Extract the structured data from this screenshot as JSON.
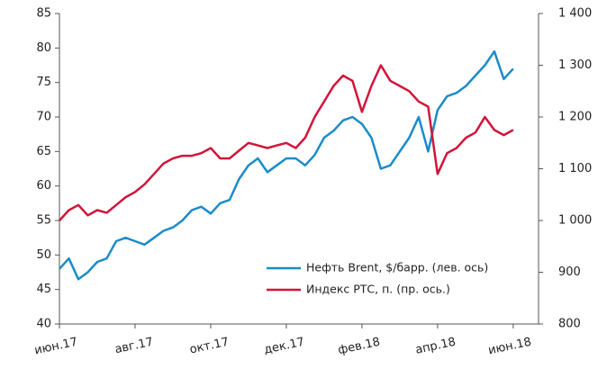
{
  "chart_data": {
    "type": "line",
    "xlim": [
      0,
      12.67
    ],
    "xticks": [
      {
        "value": 0,
        "label": "июн.17"
      },
      {
        "value": 2,
        "label": "авг.17"
      },
      {
        "value": 4,
        "label": "окт.17"
      },
      {
        "value": 6,
        "label": "дек.17"
      },
      {
        "value": 8,
        "label": "фев.18"
      },
      {
        "value": 10,
        "label": "апр.18"
      },
      {
        "value": 12,
        "label": "июн.18"
      }
    ],
    "ylim": [
      40,
      85
    ],
    "yticks": [
      40,
      45,
      50,
      55,
      60,
      65,
      70,
      75,
      80,
      85
    ],
    "y2lim": [
      800,
      1400
    ],
    "y2ticks": [
      {
        "value": 800,
        "label": "800"
      },
      {
        "value": 900,
        "label": "900"
      },
      {
        "value": 1000,
        "label": "1 000"
      },
      {
        "value": 1100,
        "label": "1 100"
      },
      {
        "value": 1200,
        "label": "1 200"
      },
      {
        "value": 1300,
        "label": "1 300"
      },
      {
        "value": 1400,
        "label": "1 400"
      }
    ],
    "x": [
      0,
      0.25,
      0.5,
      0.75,
      1,
      1.25,
      1.5,
      1.75,
      2,
      2.25,
      2.5,
      2.75,
      3,
      3.25,
      3.5,
      3.75,
      4,
      4.25,
      4.5,
      4.75,
      5,
      5.25,
      5.5,
      5.75,
      6,
      6.25,
      6.5,
      6.75,
      7,
      7.25,
      7.5,
      7.75,
      8,
      8.25,
      8.5,
      8.75,
      9,
      9.25,
      9.5,
      9.75,
      10,
      10.25,
      10.5,
      10.75,
      11,
      11.25,
      11.5,
      11.75,
      12
    ],
    "legend": "lower right",
    "series": [
      {
        "name": "Нефть Brent, $/барр. (лев. ось)",
        "color": "#1a8cc8",
        "axis": "y",
        "values": [
          48,
          49.5,
          46.5,
          47.5,
          49,
          49.5,
          52,
          52.5,
          52,
          51.5,
          52.5,
          53.5,
          54,
          55,
          56.5,
          57,
          56,
          57.5,
          58,
          61,
          63,
          64,
          62,
          63,
          64,
          64,
          63,
          64.5,
          67,
          68,
          69.5,
          70,
          69,
          67,
          62.5,
          63,
          65,
          67,
          70,
          65,
          71,
          73,
          73.5,
          74.5,
          76,
          77.5,
          79.5,
          75.5,
          77
        ]
      },
      {
        "name": "Индекс РТС, п. (пр. ось.)",
        "color": "#d2143a",
        "axis": "y2",
        "values": [
          1000,
          1020,
          1030,
          1010,
          1020,
          1015,
          1030,
          1045,
          1055,
          1070,
          1090,
          1110,
          1120,
          1125,
          1125,
          1130,
          1140,
          1120,
          1120,
          1135,
          1150,
          1145,
          1140,
          1145,
          1150,
          1140,
          1160,
          1200,
          1230,
          1260,
          1280,
          1270,
          1210,
          1260,
          1300,
          1270,
          1260,
          1250,
          1230,
          1220,
          1090,
          1130,
          1140,
          1160,
          1170,
          1200,
          1175,
          1165,
          1175
        ]
      }
    ]
  }
}
